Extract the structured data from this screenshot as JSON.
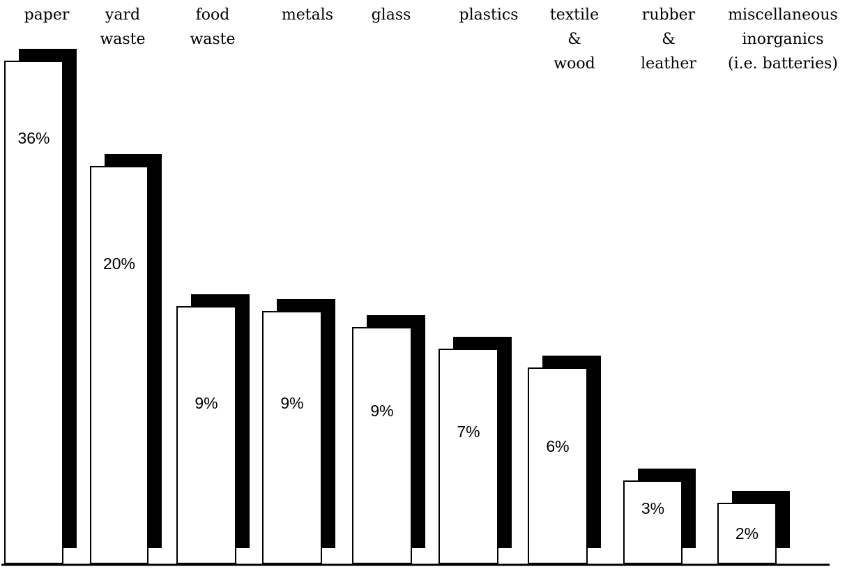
{
  "chart_data": {
    "type": "bar",
    "title": "",
    "xlabel": "",
    "ylabel": "",
    "ylim": [
      0,
      36
    ],
    "grid": false,
    "legend": "none",
    "categories": [
      [
        "paper"
      ],
      [
        "yard",
        "waste"
      ],
      [
        "food",
        "waste"
      ],
      [
        "metals"
      ],
      [
        "glass"
      ],
      [
        "plastics"
      ],
      [
        "textile",
        "&",
        "wood"
      ],
      [
        "rubber",
        "&",
        "leather"
      ],
      [
        "miscellaneous",
        "inorganics",
        "(i.e. batteries)"
      ]
    ],
    "values": [
      36,
      20,
      9,
      9,
      9,
      7,
      6,
      3,
      2
    ],
    "value_labels": [
      "36%",
      "20%",
      "9%",
      "9%",
      "9%",
      "7%",
      "6%",
      "3%",
      "2%"
    ],
    "colors": {
      "bar_face": "#ffffff",
      "bar_outline": "#000000",
      "bar_shadow": "#000000"
    }
  }
}
